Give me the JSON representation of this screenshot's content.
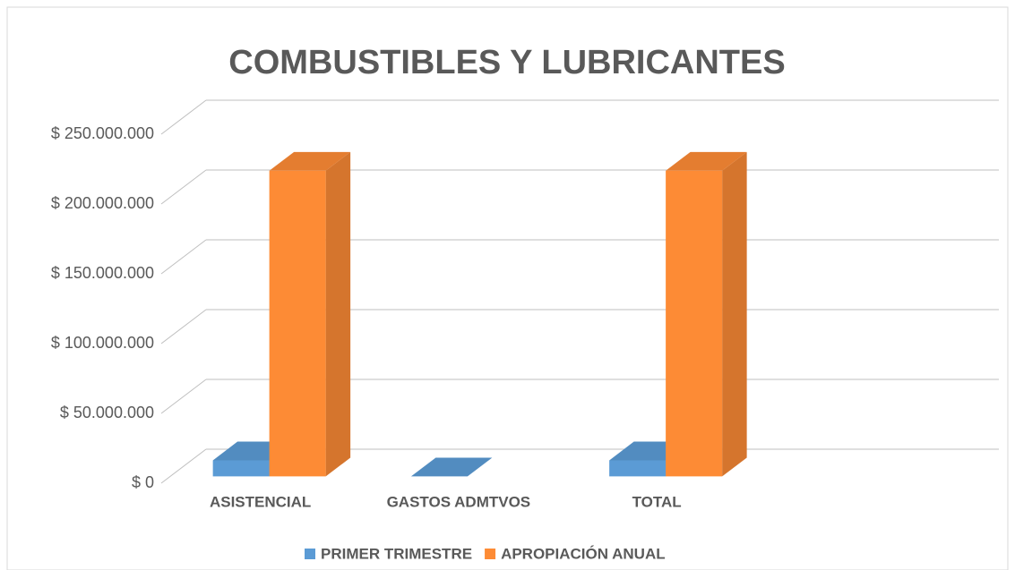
{
  "chart_data": {
    "type": "bar3d",
    "title": "COMBUSTIBLES Y LUBRICANTES",
    "categories": [
      "ASISTENCIAL",
      "GASTOS ADMTVOS",
      "TOTAL",
      null
    ],
    "series": [
      {
        "name": "PRIMER TRIMESTRE",
        "color": "#5b9bd5",
        "values": [
          11500000,
          0,
          11500000,
          null
        ]
      },
      {
        "name": "APROPIACIÓN ANUAL",
        "color": "#fd8b35",
        "values": [
          219000000,
          null,
          219000000,
          null
        ]
      }
    ],
    "ylim": [
      0,
      250000000
    ],
    "yticks": [
      {
        "value": 0,
        "label": "$ 0"
      },
      {
        "value": 50000000,
        "label": "$ 50.000.000"
      },
      {
        "value": 100000000,
        "label": "$ 100.000.000"
      },
      {
        "value": 150000000,
        "label": "$ 150.000.000"
      },
      {
        "value": 200000000,
        "label": "$ 200.000.000"
      },
      {
        "value": 250000000,
        "label": "$ 250.000.000"
      }
    ],
    "grid": true,
    "legend": "bottom"
  }
}
